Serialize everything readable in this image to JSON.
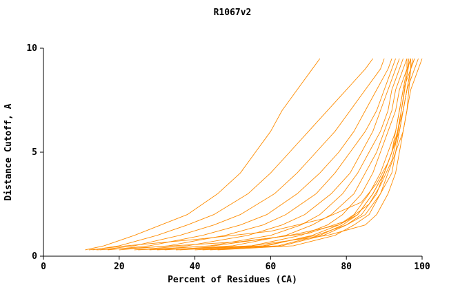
{
  "title": "R1067v2",
  "chart_data": {
    "type": "line",
    "title": "R1067v2",
    "xlabel": "Percent of Residues (CA)",
    "ylabel": "Distance Cutoff, A",
    "xlim": [
      0,
      100
    ],
    "ylim": [
      0,
      10
    ],
    "x_ticks": [
      0,
      20,
      40,
      60,
      80,
      100
    ],
    "y_ticks": [
      0,
      5,
      10
    ],
    "grid": false,
    "legend": "none",
    "line_color": "#ff8c00",
    "axis_color": "#000000",
    "series": [
      {
        "points": [
          [
            11,
            0.3
          ],
          [
            16,
            0.5
          ],
          [
            24,
            1
          ],
          [
            31,
            1.5
          ],
          [
            38,
            2
          ],
          [
            46,
            3
          ],
          [
            52,
            4
          ],
          [
            56,
            5
          ],
          [
            60,
            6
          ],
          [
            63,
            7
          ],
          [
            67,
            8
          ],
          [
            71,
            9
          ],
          [
            73,
            9.5
          ]
        ]
      },
      {
        "points": [
          [
            13,
            0.3
          ],
          [
            20,
            0.5
          ],
          [
            30,
            1
          ],
          [
            38,
            1.5
          ],
          [
            45,
            2
          ],
          [
            54,
            3
          ],
          [
            60,
            4
          ],
          [
            65,
            5
          ],
          [
            70,
            6
          ],
          [
            75,
            7
          ],
          [
            80,
            8
          ],
          [
            85,
            9
          ],
          [
            87,
            9.5
          ]
        ]
      },
      {
        "points": [
          [
            15,
            0.3
          ],
          [
            24,
            0.5
          ],
          [
            36,
            1
          ],
          [
            45,
            1.5
          ],
          [
            52,
            2
          ],
          [
            61,
            3
          ],
          [
            67,
            4
          ],
          [
            72,
            5
          ],
          [
            77,
            6
          ],
          [
            81,
            7
          ],
          [
            85,
            8
          ],
          [
            89,
            9
          ],
          [
            90,
            9.5
          ]
        ]
      },
      {
        "points": [
          [
            17,
            0.3
          ],
          [
            28,
            0.5
          ],
          [
            42,
            1
          ],
          [
            52,
            1.5
          ],
          [
            59,
            2
          ],
          [
            67,
            3
          ],
          [
            73,
            4
          ],
          [
            78,
            5
          ],
          [
            82,
            6
          ],
          [
            85,
            7
          ],
          [
            88,
            8
          ],
          [
            91,
            9
          ],
          [
            92,
            9.5
          ]
        ]
      },
      {
        "points": [
          [
            20,
            0.3
          ],
          [
            33,
            0.5
          ],
          [
            48,
            1
          ],
          [
            58,
            1.5
          ],
          [
            64,
            2
          ],
          [
            72,
            3
          ],
          [
            77,
            4
          ],
          [
            81,
            5
          ],
          [
            85,
            6
          ],
          [
            88,
            7
          ],
          [
            90,
            8
          ],
          [
            92,
            9
          ],
          [
            93,
            9.5
          ]
        ]
      },
      {
        "points": [
          [
            24,
            0.3
          ],
          [
            38,
            0.5
          ],
          [
            54,
            1
          ],
          [
            63,
            1.5
          ],
          [
            69,
            2
          ],
          [
            76,
            3
          ],
          [
            81,
            4
          ],
          [
            84,
            5
          ],
          [
            87,
            6
          ],
          [
            89,
            7
          ],
          [
            91,
            8
          ],
          [
            93,
            9
          ],
          [
            94,
            9.5
          ]
        ]
      },
      {
        "points": [
          [
            28,
            0.3
          ],
          [
            44,
            0.5
          ],
          [
            60,
            1
          ],
          [
            68,
            1.5
          ],
          [
            73,
            2
          ],
          [
            79,
            3
          ],
          [
            83,
            4
          ],
          [
            86,
            5
          ],
          [
            89,
            6
          ],
          [
            91,
            7
          ],
          [
            92,
            8
          ],
          [
            94,
            9
          ],
          [
            95,
            9.5
          ]
        ]
      },
      {
        "points": [
          [
            32,
            0.3
          ],
          [
            50,
            0.5
          ],
          [
            64,
            1
          ],
          [
            71,
            1.5
          ],
          [
            76,
            2
          ],
          [
            82,
            3
          ],
          [
            85,
            4
          ],
          [
            88,
            5
          ],
          [
            90,
            6
          ],
          [
            92,
            7
          ],
          [
            93,
            8
          ],
          [
            95,
            9
          ],
          [
            96,
            9.5
          ]
        ]
      },
      {
        "points": [
          [
            36,
            0.3
          ],
          [
            55,
            0.5
          ],
          [
            68,
            1
          ],
          [
            75,
            1.5
          ],
          [
            79,
            2
          ],
          [
            84,
            3
          ],
          [
            87,
            4
          ],
          [
            89,
            5
          ],
          [
            91,
            6
          ],
          [
            93,
            7
          ],
          [
            94,
            8
          ],
          [
            96,
            9
          ],
          [
            97,
            9.5
          ]
        ]
      },
      {
        "points": [
          [
            40,
            0.3
          ],
          [
            59,
            0.5
          ],
          [
            71,
            1
          ],
          [
            78,
            1.5
          ],
          [
            82,
            2
          ],
          [
            86,
            3
          ],
          [
            89,
            4
          ],
          [
            91,
            5
          ],
          [
            93,
            6
          ],
          [
            94,
            7
          ],
          [
            95,
            8
          ],
          [
            97,
            9
          ],
          [
            98,
            9.5
          ]
        ]
      },
      {
        "points": [
          [
            44,
            0.3
          ],
          [
            63,
            0.5
          ],
          [
            74,
            1
          ],
          [
            80,
            1.5
          ],
          [
            84,
            2
          ],
          [
            88,
            3
          ],
          [
            90,
            4
          ],
          [
            92,
            5
          ],
          [
            94,
            6
          ],
          [
            95,
            7
          ],
          [
            96,
            8
          ],
          [
            98,
            9
          ],
          [
            99,
            9.5
          ]
        ]
      },
      {
        "points": [
          [
            46,
            0.3
          ],
          [
            66,
            0.5
          ],
          [
            77,
            1
          ],
          [
            82,
            1.5
          ],
          [
            86,
            2
          ],
          [
            89,
            3
          ],
          [
            92,
            4
          ],
          [
            93,
            5
          ],
          [
            95,
            6
          ],
          [
            96,
            7
          ],
          [
            97,
            8
          ],
          [
            99,
            9
          ],
          [
            100,
            9.5
          ]
        ]
      },
      {
        "points": [
          [
            30,
            0.3
          ],
          [
            55,
            0.5
          ],
          [
            75,
            1
          ],
          [
            85,
            1.5
          ],
          [
            88,
            2
          ],
          [
            91,
            3
          ],
          [
            93,
            4
          ],
          [
            94,
            5
          ],
          [
            95,
            6
          ],
          [
            96,
            7
          ],
          [
            96.5,
            8
          ],
          [
            97,
            9
          ],
          [
            97,
            9.5
          ]
        ]
      },
      {
        "points": [
          [
            25,
            0.3
          ],
          [
            45,
            0.5
          ],
          [
            65,
            1
          ],
          [
            78,
            1.5
          ],
          [
            83,
            2
          ],
          [
            87,
            3
          ],
          [
            90,
            4
          ],
          [
            92,
            5
          ],
          [
            93,
            6
          ],
          [
            94,
            7
          ],
          [
            95,
            8
          ],
          [
            96,
            9
          ],
          [
            96,
            9.5
          ]
        ]
      },
      {
        "points": [
          [
            35,
            0.3
          ],
          [
            58,
            0.5
          ],
          [
            72,
            1
          ],
          [
            80,
            1.5
          ],
          [
            85,
            2
          ],
          [
            89,
            3
          ],
          [
            91,
            4
          ],
          [
            93,
            5
          ],
          [
            94,
            6
          ],
          [
            95,
            7
          ],
          [
            96,
            8
          ],
          [
            97,
            9
          ],
          [
            98,
            9.5
          ]
        ]
      },
      {
        "points": [
          [
            42,
            0.3
          ],
          [
            62,
            0.5
          ],
          [
            73,
            1
          ],
          [
            79,
            1.5
          ],
          [
            83,
            2
          ],
          [
            87,
            3
          ],
          [
            90,
            4
          ],
          [
            92,
            5
          ],
          [
            93.5,
            6
          ],
          [
            95,
            7
          ],
          [
            96,
            8
          ],
          [
            97,
            9
          ],
          [
            97.5,
            9.5
          ]
        ]
      },
      {
        "points": [
          [
            12,
            0.3
          ],
          [
            22,
            0.5
          ],
          [
            40,
            0.8
          ],
          [
            60,
            1.2
          ],
          [
            74,
            1.8
          ],
          [
            84,
            2.6
          ],
          [
            88,
            3.5
          ],
          [
            91,
            4.5
          ],
          [
            93,
            5.5
          ],
          [
            94,
            6.5
          ],
          [
            95,
            7.5
          ],
          [
            96,
            8.7
          ],
          [
            96.5,
            9.5
          ]
        ]
      },
      {
        "points": [
          [
            14,
            0.3
          ],
          [
            30,
            0.45
          ],
          [
            52,
            0.7
          ],
          [
            70,
            1.1
          ],
          [
            80,
            1.7
          ],
          [
            86,
            2.5
          ],
          [
            89,
            3.4
          ],
          [
            92,
            4.6
          ],
          [
            93.5,
            5.8
          ],
          [
            94.5,
            7
          ],
          [
            95.5,
            8.2
          ],
          [
            96.5,
            9.2
          ],
          [
            97,
            9.5
          ]
        ]
      }
    ]
  }
}
